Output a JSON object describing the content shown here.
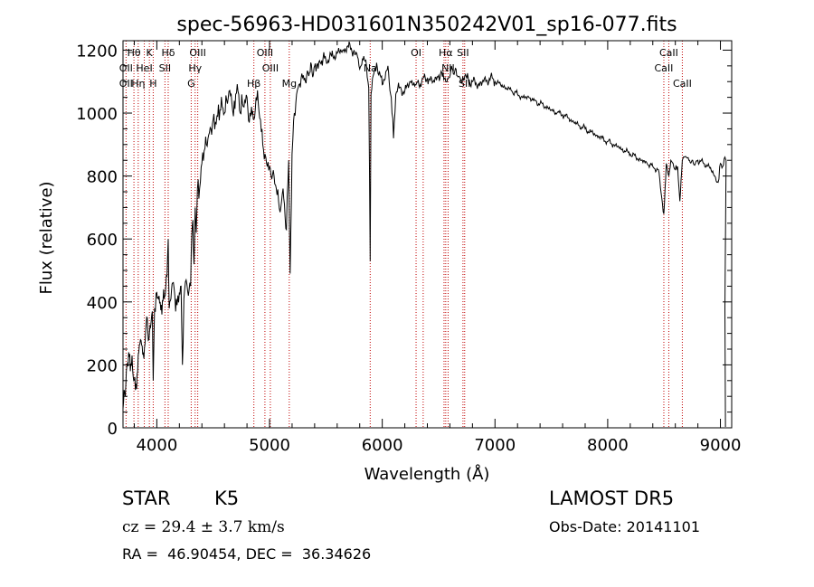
{
  "chart_data": {
    "type": "line",
    "title": "spec-56963-HD031601N350242V01_sp16-077.fits",
    "xlabel": "Wavelength (Å)",
    "ylabel": "Flux (relative)",
    "xlim": [
      3700,
      9100
    ],
    "ylim": [
      0,
      1230
    ],
    "x_ticks": [
      4000,
      5000,
      6000,
      7000,
      8000,
      9000
    ],
    "x_tick_labels": [
      "4000",
      "5000",
      "6000",
      "7000",
      "8000",
      "9000"
    ],
    "y_ticks": [
      0,
      200,
      400,
      600,
      800,
      1000,
      1200
    ],
    "y_tick_labels": [
      "0",
      "200",
      "400",
      "600",
      "800",
      "1000",
      "1200"
    ],
    "grid": false,
    "series": [
      {
        "x": [
          3700,
          3710,
          3720,
          3735,
          3750,
          3765,
          3780,
          3795,
          3810,
          3825,
          3840,
          3855,
          3870,
          3885,
          3900,
          3915,
          3930,
          3945,
          3960,
          3968,
          3980,
          4000,
          4015,
          4030,
          4045,
          4060,
          4075,
          4090,
          4101,
          4110,
          4125,
          4140,
          4160,
          4180,
          4200,
          4215,
          4227,
          4240,
          4260,
          4280,
          4300,
          4310,
          4320,
          4330,
          4340,
          4350,
          4360,
          4380,
          4400,
          4420,
          4440,
          4460,
          4480,
          4500,
          4520,
          4540,
          4560,
          4580,
          4600,
          4620,
          4640,
          4660,
          4680,
          4700,
          4720,
          4740,
          4760,
          4780,
          4800,
          4820,
          4840,
          4861,
          4880,
          4900,
          4920,
          4940,
          4960,
          4980,
          5000,
          5020,
          5040,
          5060,
          5080,
          5100,
          5120,
          5150,
          5170,
          5183,
          5200,
          5220,
          5240,
          5260,
          5280,
          5300,
          5330,
          5360,
          5400,
          5450,
          5500,
          5550,
          5600,
          5650,
          5700,
          5750,
          5780,
          5800,
          5830,
          5860,
          5880,
          5893,
          5900,
          5920,
          5950,
          6000,
          6050,
          6080,
          6100,
          6120,
          6150,
          6200,
          6250,
          6300,
          6350,
          6400,
          6450,
          6500,
          6540,
          6563,
          6580,
          6620,
          6660,
          6700,
          6720,
          6750,
          6800,
          6850,
          6900,
          6950,
          7000,
          7050,
          7100,
          7150,
          7200,
          7250,
          7300,
          7350,
          7400,
          7450,
          7500,
          7550,
          7600,
          7650,
          7700,
          7750,
          7800,
          7850,
          7900,
          7950,
          8000,
          8050,
          8100,
          8150,
          8200,
          8250,
          8300,
          8350,
          8400,
          8450,
          8498,
          8520,
          8542,
          8560,
          8580,
          8600,
          8620,
          8640,
          8662,
          8680,
          8720,
          8760,
          8800,
          8850,
          8900,
          8950,
          8980,
          9000,
          9020,
          9040,
          9050
        ],
        "y": [
          60,
          120,
          100,
          200,
          240,
          180,
          230,
          150,
          120,
          170,
          240,
          280,
          260,
          220,
          300,
          350,
          280,
          320,
          370,
          150,
          380,
          430,
          410,
          400,
          360,
          440,
          420,
          480,
          600,
          380,
          410,
          460,
          420,
          390,
          430,
          450,
          200,
          410,
          470,
          420,
          450,
          610,
          660,
          520,
          700,
          620,
          760,
          760,
          840,
          880,
          900,
          930,
          950,
          980,
          970,
          990,
          1010,
          1020,
          1000,
          1040,
          1070,
          1060,
          990,
          1060,
          1070,
          1000,
          1030,
          1040,
          1050,
          970,
          1020,
          980,
          1050,
          1030,
          980,
          900,
          870,
          830,
          830,
          790,
          800,
          760,
          720,
          700,
          760,
          630,
          850,
          490,
          870,
          1000,
          1060,
          1090,
          1110,
          1120,
          1120,
          1130,
          1150,
          1160,
          1170,
          1180,
          1190,
          1200,
          1210,
          1200,
          1180,
          1140,
          1170,
          1150,
          1080,
          530,
          1060,
          1120,
          1160,
          1090,
          1150,
          1050,
          920,
          1060,
          1080,
          1070,
          1100,
          1090,
          1100,
          1110,
          1100,
          1120,
          1130,
          1100,
          1110,
          1140,
          1120,
          1100,
          1110,
          1110,
          1100,
          1090,
          1100,
          1110,
          1100,
          1090,
          1080,
          1070,
          1060,
          1050,
          1050,
          1040,
          1030,
          1020,
          1010,
          1000,
          995,
          985,
          970,
          960,
          950,
          940,
          930,
          920,
          910,
          900,
          890,
          880,
          870,
          860,
          850,
          840,
          830,
          820,
          680,
          840,
          800,
          850,
          840,
          820,
          830,
          720,
          850,
          860,
          850,
          840,
          850,
          840,
          830,
          800,
          780,
          840,
          830,
          860,
          850
        ]
      }
    ],
    "line_labels": [
      {
        "label": "Hθ",
        "x": 3797,
        "row": 1
      },
      {
        "label": "OII",
        "x": 3727,
        "row": 2
      },
      {
        "label": "OII",
        "x": 3727,
        "row": 3
      },
      {
        "label": "K",
        "x": 3934,
        "row": 1
      },
      {
        "label": "HeI",
        "x": 3889,
        "row": 2
      },
      {
        "label": "Hη",
        "x": 3835,
        "row": 3
      },
      {
        "label": "H",
        "x": 3968,
        "row": 3
      },
      {
        "label": "Hδ",
        "x": 4101,
        "row": 1
      },
      {
        "label": "SII",
        "x": 4072,
        "row": 2
      },
      {
        "label": "OIII",
        "x": 4363,
        "row": 1
      },
      {
        "label": "Hγ",
        "x": 4340,
        "row": 2
      },
      {
        "label": "G",
        "x": 4305,
        "row": 3
      },
      {
        "label": "OIII",
        "x": 4959,
        "row": 1
      },
      {
        "label": "OIII",
        "x": 5007,
        "row": 2
      },
      {
        "label": "Hβ",
        "x": 4861,
        "row": 3
      },
      {
        "label": "Mg",
        "x": 5175,
        "row": 3
      },
      {
        "label": "Na",
        "x": 5893,
        "row": 2
      },
      {
        "label": "OI",
        "x": 6300,
        "row": 1
      },
      {
        "label": "Hα",
        "x": 6563,
        "row": 1
      },
      {
        "label": "SII",
        "x": 6716,
        "row": 1
      },
      {
        "label": "NII",
        "x": 6584,
        "row": 2
      },
      {
        "label": "SII",
        "x": 6731,
        "row": 3
      },
      {
        "label": "CaII",
        "x": 8542,
        "row": 1
      },
      {
        "label": "CaII",
        "x": 8498,
        "row": 2
      },
      {
        "label": "CaII",
        "x": 8662,
        "row": 3
      }
    ],
    "reference_lines_x": [
      3727,
      3797,
      3835,
      3889,
      3934,
      3968,
      4072,
      4101,
      4305,
      4340,
      4363,
      4861,
      4959,
      5007,
      5175,
      5893,
      6300,
      6363,
      6548,
      6563,
      6584,
      6716,
      6731,
      8498,
      8542,
      8662
    ],
    "colors": {
      "spectrum": "#000000",
      "reference_lines": "#c00000",
      "text": "#000000"
    }
  },
  "info": {
    "object_class": "STAR",
    "subclass": "K5",
    "survey": "LAMOST DR5",
    "redshift": "cz = 29.4 ± 3.7 km/s",
    "obs_date": "Obs-Date: 20141101",
    "coords": "RA =  46.90454, DEC =  36.34626"
  }
}
